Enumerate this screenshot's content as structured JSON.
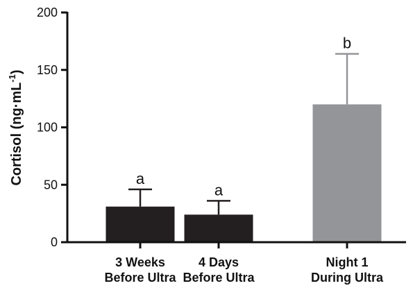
{
  "chart_data": {
    "type": "bar",
    "categories": [
      [
        "3 Weeks",
        "Before Ultra"
      ],
      [
        "4 Days",
        "Before Ultra"
      ],
      [
        "Night 1",
        "During Ultra"
      ]
    ],
    "values": [
      31,
      24,
      120
    ],
    "error_upper": [
      46,
      36,
      164
    ],
    "significance_letters": [
      "a",
      "a",
      "b"
    ],
    "bar_colors": [
      "#231f20",
      "#231f20",
      "#939598"
    ],
    "ylabel": {
      "main": "Cortisol (ng·mL",
      "sup": "-1",
      "close": ")"
    },
    "ylim": [
      0,
      200
    ],
    "yticks": [
      "0",
      "50",
      "100",
      "150",
      "200"
    ],
    "grid": false,
    "legend": "none"
  }
}
